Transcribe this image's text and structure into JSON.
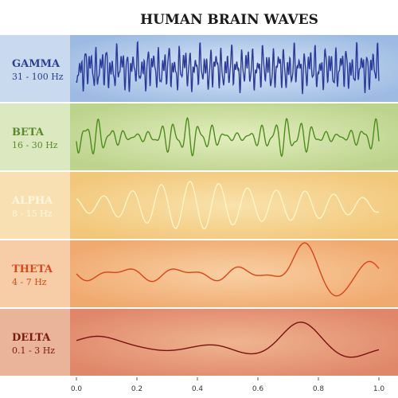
{
  "title": "HUMAN BRAIN WAVES",
  "bands": [
    {
      "name": "GAMMA",
      "range": "31 - 100 Hz"
    },
    {
      "name": "BETA",
      "range": "16 - 30 Hz"
    },
    {
      "name": "ALPHA",
      "range": "8 - 15 Hz"
    },
    {
      "name": "THETA",
      "range": "4 - 7 Hz"
    },
    {
      "name": "DELTA",
      "range": "0.1 - 3 Hz"
    }
  ],
  "axis": {
    "ticks": [
      "0.0",
      "0.2",
      "0.4",
      "0.6",
      "0.8",
      "1.0"
    ]
  }
}
